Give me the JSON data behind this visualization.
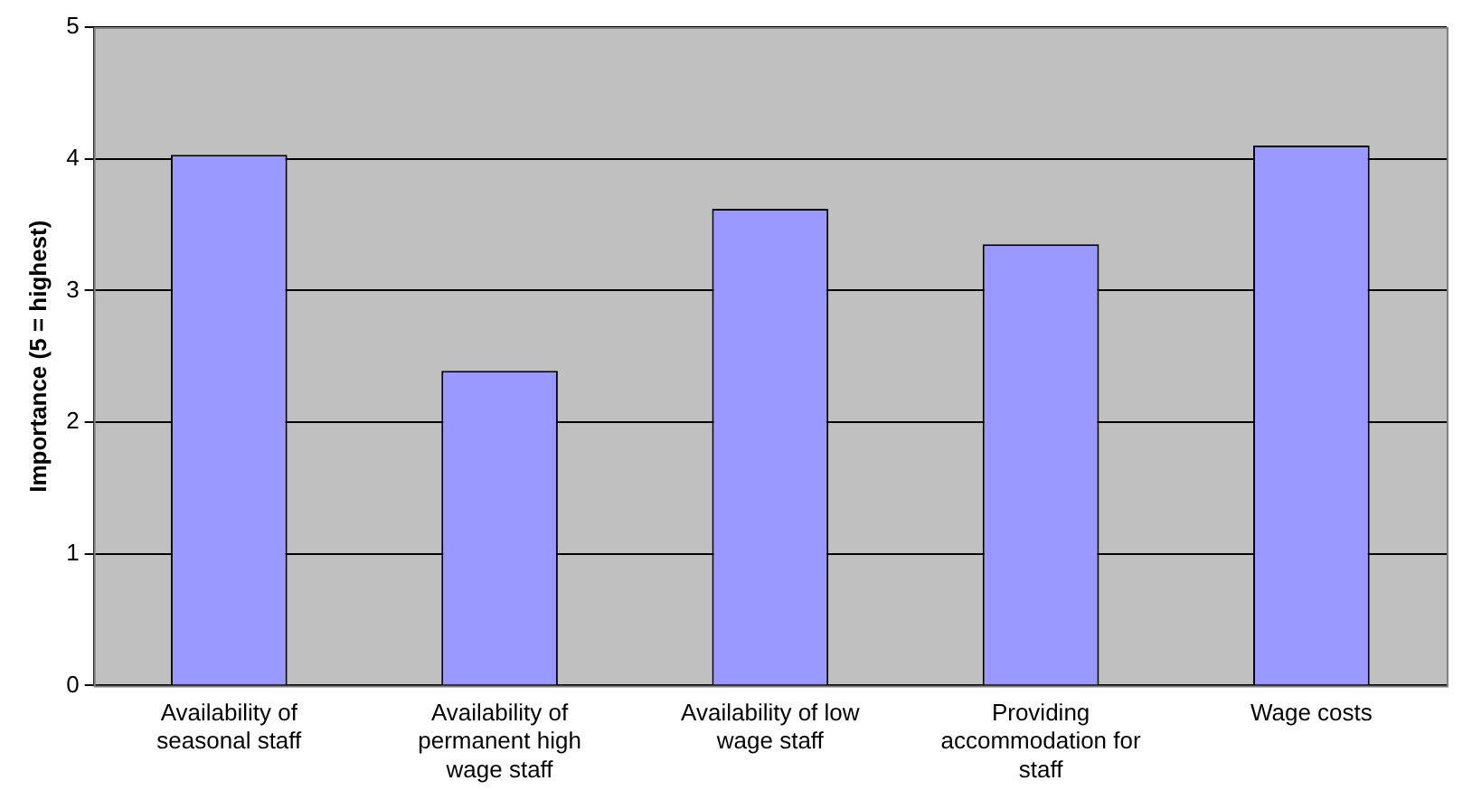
{
  "chart_data": {
    "type": "bar",
    "ylabel": "Importance (5 = highest)",
    "categories": [
      "Availability of seasonal staff",
      "Availability of permanent high wage staff",
      "Availability of low wage staff",
      "Providing accommodation for staff",
      "Wage costs"
    ],
    "values": [
      4.03,
      2.39,
      3.62,
      3.35,
      4.1
    ],
    "color": "#9999ff",
    "ylim": [
      0,
      5
    ],
    "yticks": [
      0,
      1,
      2,
      3,
      4,
      5
    ],
    "grid": "y",
    "legend": false
  }
}
